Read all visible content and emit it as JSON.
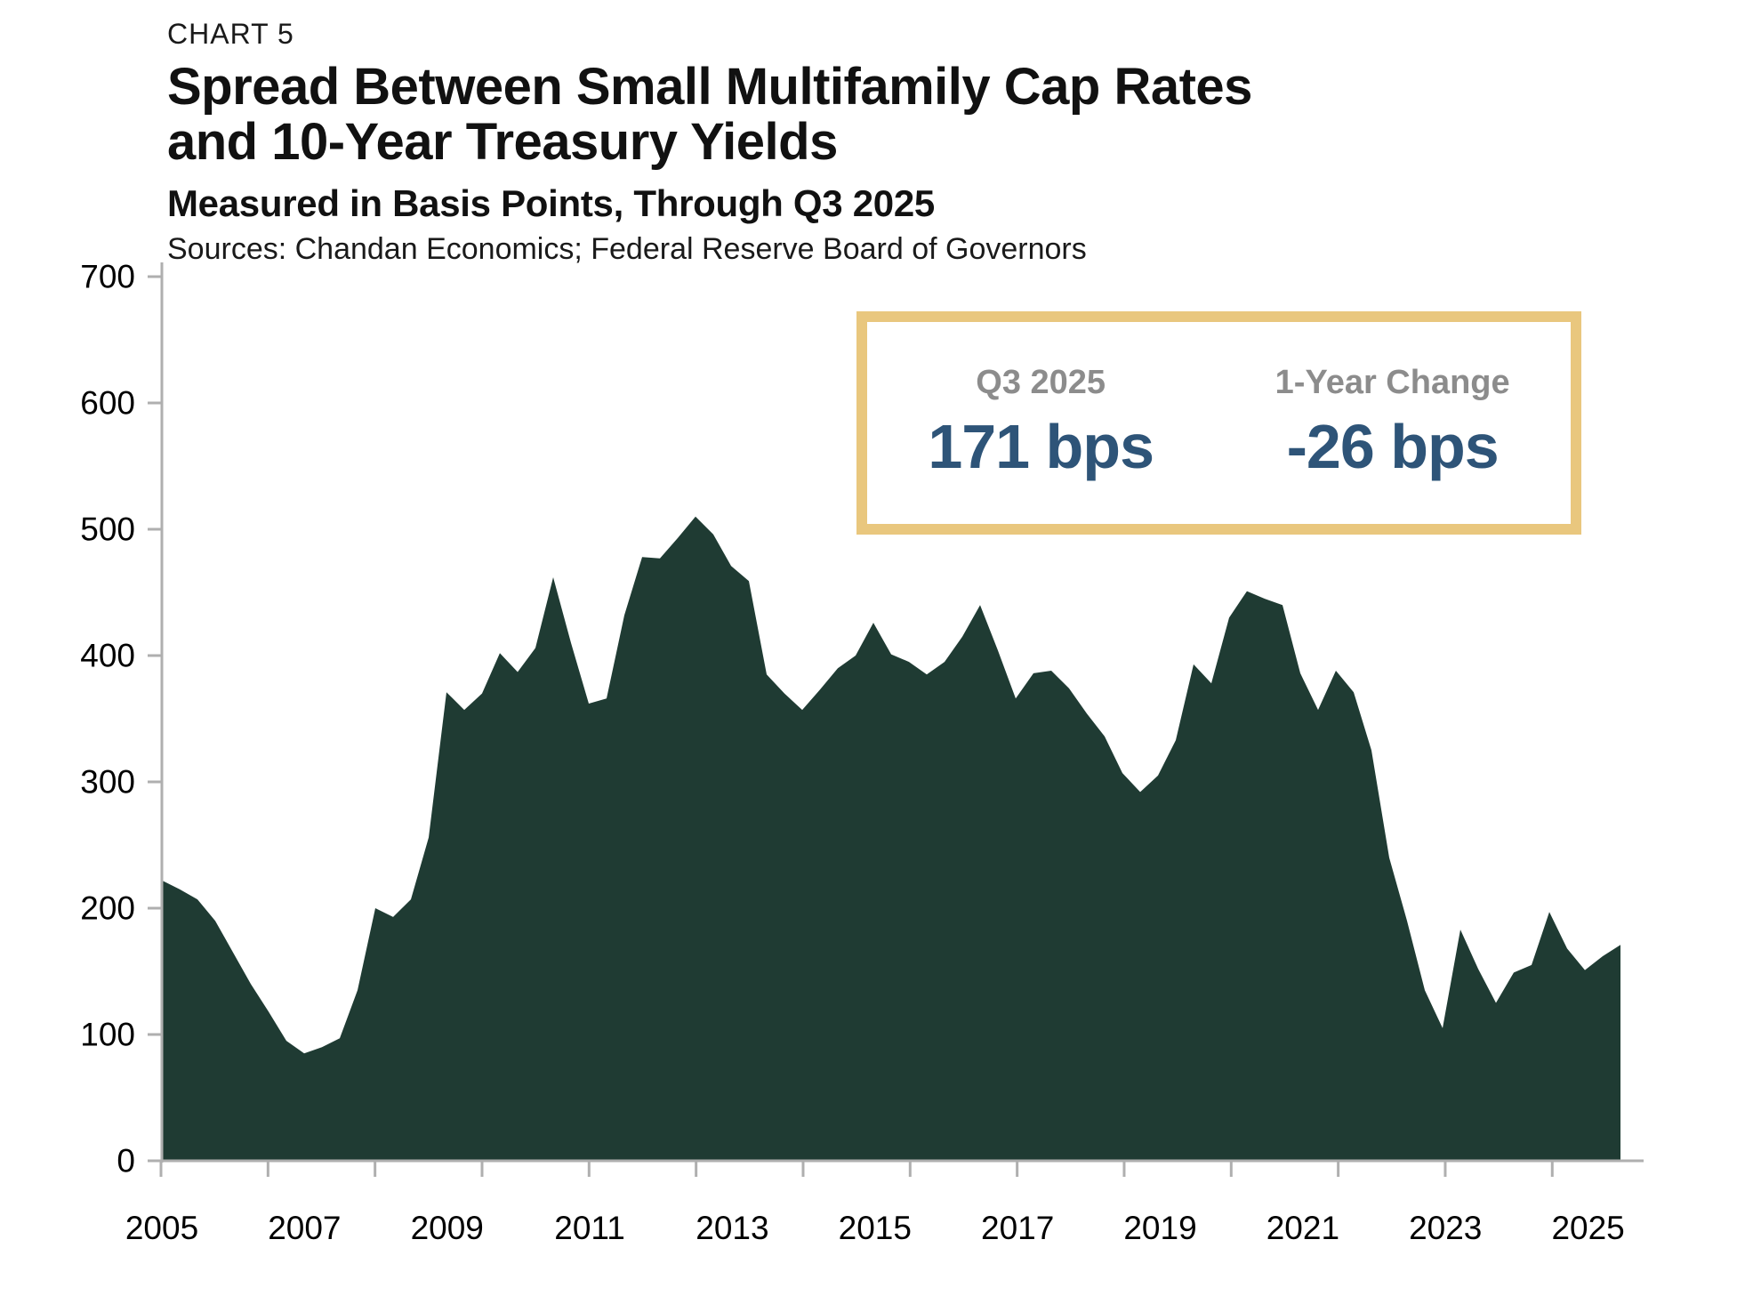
{
  "header": {
    "chart_label": "CHART 5",
    "title_line1": "Spread Between Small Multifamily Cap Rates",
    "title_line2": "and 10-Year Treasury Yields",
    "subtitle": "Measured in Basis Points, Through Q3 2025",
    "sources": "Sources: Chandan Economics; Federal Reserve Board of Governors"
  },
  "callout": {
    "col1_label": "Q3 2025",
    "col1_value": "171 bps",
    "col2_label": "1-Year Change",
    "col2_value": "-26 bps"
  },
  "colors": {
    "area": "#1F3B33",
    "axis": "#AFAFAF",
    "gold_border": "#E9C77E",
    "value_blue": "#2E5478",
    "label_gray": "#8C8C8C"
  },
  "chart_data": {
    "type": "area",
    "title": "Spread Between Small Multifamily Cap Rates and 10-Year Treasury Yields",
    "units": "basis points",
    "x_start": "2005 Q1",
    "x_end": "2025 Q3",
    "frequency": "quarterly",
    "ylim": [
      0,
      700
    ],
    "y_tick_labels": [
      "0",
      "100",
      "200",
      "300",
      "400",
      "500",
      "600",
      "700"
    ],
    "x_tick_labels": [
      "2005",
      "2007",
      "2009",
      "2011",
      "2013",
      "2015",
      "2017",
      "2019",
      "2021",
      "2023",
      "2025"
    ],
    "grid": false,
    "legend": false,
    "series": [
      {
        "name": "Spread between small multifamily cap rates and 10-year Treasury yields (bps)",
        "values": [
          222,
          215,
          207,
          190,
          165,
          140,
          118,
          95,
          85,
          90,
          97,
          135,
          200,
          193,
          207,
          256,
          371,
          357,
          370,
          402,
          387,
          406,
          462,
          410,
          362,
          366,
          432,
          478,
          477,
          493,
          510,
          496,
          471,
          459,
          385,
          370,
          357,
          373,
          390,
          400,
          426,
          401,
          395,
          385,
          395,
          415,
          440,
          404,
          366,
          386,
          388,
          374,
          354,
          336,
          307,
          292,
          305,
          333,
          393,
          378,
          430,
          451,
          445,
          440,
          386,
          357,
          388,
          371,
          325,
          240,
          190,
          135,
          105,
          183,
          152,
          125,
          149,
          155,
          197,
          168,
          151,
          162,
          171
        ]
      }
    ],
    "annotations": {
      "latest_quarter": "Q3 2025",
      "latest_value_bps": 171,
      "one_year_change_bps": -26
    }
  }
}
